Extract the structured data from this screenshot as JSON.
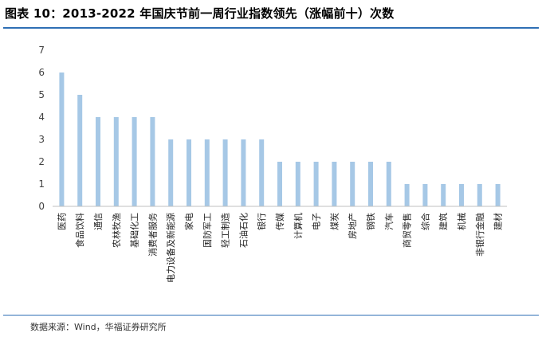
{
  "figure": {
    "title": "图表 10：2013-2022 年国庆节前一周行业指数领先（涨幅前十）次数",
    "source": "数据来源：Wind，华福证券研究所"
  },
  "chart_data": {
    "type": "bar",
    "title": "",
    "xlabel": "",
    "ylabel": "",
    "ylim": [
      0,
      7
    ],
    "yticks": [
      0,
      1,
      2,
      3,
      4,
      5,
      6,
      7
    ],
    "grid": false,
    "legend": "none",
    "bar_color": "#a6c8e6",
    "categories": [
      "医药",
      "食品饮料",
      "通信",
      "农林牧渔",
      "基础化工",
      "消费者服务",
      "电力设备及新能源",
      "家电",
      "国防军工",
      "轻工制造",
      "石油石化",
      "银行",
      "传媒",
      "计算机",
      "电子",
      "煤炭",
      "房地产",
      "钢铁",
      "汽车",
      "商贸零售",
      "综合",
      "建筑",
      "机械",
      "非银行金融",
      "建材"
    ],
    "values": [
      6,
      5,
      4,
      4,
      4,
      4,
      3,
      3,
      3,
      3,
      3,
      3,
      2,
      2,
      2,
      2,
      2,
      2,
      2,
      1,
      1,
      1,
      1,
      1,
      1
    ]
  }
}
